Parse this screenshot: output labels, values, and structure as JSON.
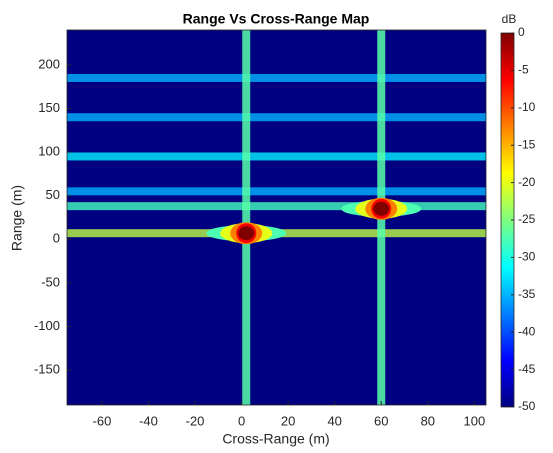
{
  "chart_data": {
    "type": "heatmap",
    "title": "Range Vs Cross-Range Map",
    "xlabel": "Cross-Range (m)",
    "ylabel": "Range (m)",
    "colorbar_label": "dB",
    "xlim": [
      -75,
      105
    ],
    "ylim": [
      -190,
      240
    ],
    "xticks": [
      -60,
      -40,
      -20,
      0,
      20,
      40,
      60,
      80,
      100
    ],
    "yticks": [
      -150,
      -100,
      -50,
      0,
      50,
      100,
      150,
      200
    ],
    "clim": [
      -50,
      0
    ],
    "cticks": [
      0,
      -5,
      -10,
      -15,
      -20,
      -25,
      -30,
      -35,
      -40,
      -45,
      -50
    ],
    "colormap": "jet",
    "row_streaks": [
      {
        "y": 185,
        "value": -35
      },
      {
        "y": 140,
        "value": -35
      },
      {
        "y": 95,
        "value": -32
      },
      {
        "y": 55,
        "value": -35
      },
      {
        "y": 38,
        "value": -28
      },
      {
        "y": 7,
        "value": -22
      }
    ],
    "column_streaks": [
      {
        "x": 2,
        "value": -27
      },
      {
        "x": 60,
        "value": -27
      }
    ],
    "peaks": [
      {
        "x": 2,
        "y": 7,
        "value": 0
      },
      {
        "x": 60,
        "y": 35,
        "value": 0
      }
    ]
  }
}
